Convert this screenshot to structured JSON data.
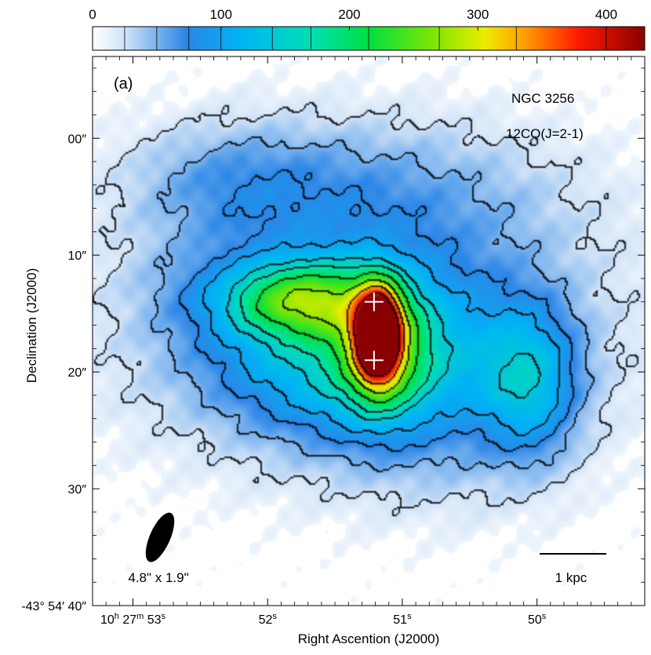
{
  "chart_data": {
    "type": "heatmap",
    "panel_label": "(a)",
    "object_name": "NGC 3256",
    "line_label": "12CO(J=2-1)",
    "xlabel": "Right Ascention (J2000)",
    "ylabel": "Declination (J2000)",
    "colorbar": {
      "min": 0,
      "max": 430,
      "ticks": [
        {
          "value": 0,
          "label": "0"
        },
        {
          "value": 100,
          "label": "100"
        },
        {
          "value": 200,
          "label": "200"
        },
        {
          "value": 300,
          "label": "300"
        },
        {
          "value": 400,
          "label": "400"
        }
      ],
      "contour_levels": [
        25,
        50,
        75,
        100,
        140,
        170,
        215,
        270,
        330,
        400
      ]
    },
    "x_ticks": [
      {
        "value": 53.0,
        "h": "10",
        "m": "27",
        "s": "53",
        "full": true
      },
      {
        "value": 52.0,
        "s": "52",
        "full": false
      },
      {
        "value": 51.0,
        "s": "51",
        "full": false
      },
      {
        "value": 50.0,
        "s": "50",
        "full": false
      }
    ],
    "y_ticks": [
      {
        "value": 0,
        "label": "00″"
      },
      {
        "value": 10,
        "label": "10″"
      },
      {
        "value": 20,
        "label": "20″"
      },
      {
        "value": 30,
        "label": "30″"
      },
      {
        "value": 40,
        "label": "-43° 54′ 40″"
      }
    ],
    "x_range": [
      53.3,
      49.2
    ],
    "y_range": [
      -7.0,
      40.0
    ],
    "beam": {
      "label": "4.8\" x 1.9\"",
      "major_arcsec": 4.8,
      "minor_arcsec": 1.9
    },
    "scalebar": {
      "label": "1 kpc"
    },
    "markers": [
      {
        "ra_s": 51.21,
        "dec_arcsec": 14.0,
        "shape": "cross"
      },
      {
        "ra_s": 51.21,
        "dec_arcsec": 19.0,
        "shape": "cross"
      }
    ],
    "components": [
      {
        "ra_s": 51.18,
        "dec_arcsec": 16.8,
        "peak": 400,
        "sx": 0.11,
        "sy": 2.6
      },
      {
        "ra_s": 51.15,
        "dec_arcsec": 18.0,
        "peak": 130,
        "sx": 0.22,
        "sy": 3.6
      },
      {
        "ra_s": 51.75,
        "dec_arcsec": 13.8,
        "peak": 170,
        "sx": 0.38,
        "sy": 2.2
      },
      {
        "ra_s": 51.3,
        "dec_arcsec": 18.5,
        "peak": 120,
        "sx": 0.75,
        "sy": 5.0
      },
      {
        "ra_s": 50.05,
        "dec_arcsec": 21.0,
        "peak": 90,
        "sx": 0.25,
        "sy": 4.5
      },
      {
        "ra_s": 51.2,
        "dec_arcsec": 5.0,
        "peak": 45,
        "sx": 1.0,
        "sy": 5.0
      },
      {
        "ra_s": 52.3,
        "dec_arcsec": 3.5,
        "peak": 35,
        "sx": 0.55,
        "sy": 3.5
      },
      {
        "ra_s": 51.25,
        "dec_arcsec": 16.0,
        "peak": 45,
        "sx": 1.4,
        "sy": 8.5
      },
      {
        "ra_s": 52.6,
        "dec_arcsec": 13.0,
        "peak": 15,
        "sx": 0.35,
        "sy": 3.0
      },
      {
        "ra_s": 50.7,
        "dec_arcsec": 27.0,
        "peak": 18,
        "sx": 0.6,
        "sy": 4.5
      }
    ]
  }
}
